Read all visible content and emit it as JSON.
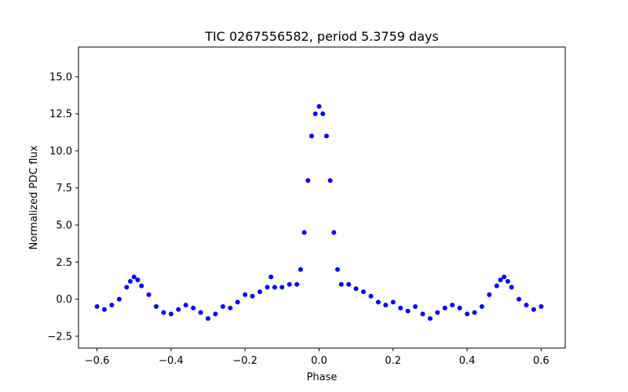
{
  "chart_data": {
    "type": "scatter",
    "title": "TIC 0267556582, period 5.3759 days",
    "xlabel": "Phase",
    "ylabel": "Normalized PDC flux",
    "xlim": [
      -0.65,
      0.665
    ],
    "ylim": [
      -3.3,
      17.0
    ],
    "xticks": [
      -0.6,
      -0.4,
      -0.2,
      0.0,
      0.2,
      0.4,
      0.6
    ],
    "xtick_labels": [
      "−0.6",
      "−0.4",
      "−0.2",
      "0.0",
      "0.2",
      "0.4",
      "0.6"
    ],
    "yticks": [
      -2.5,
      0.0,
      2.5,
      5.0,
      7.5,
      10.0,
      12.5,
      15.0
    ],
    "ytick_labels": [
      "−2.5",
      "0.0",
      "2.5",
      "5.0",
      "7.5",
      "10.0",
      "12.5",
      "15.0"
    ],
    "grid": false,
    "marker_color": "#0000ff",
    "series": [
      {
        "x": [
          -0.6,
          -0.58,
          -0.56,
          -0.54,
          -0.52,
          -0.51,
          -0.5,
          -0.49,
          -0.48,
          -0.46,
          -0.44,
          -0.42,
          -0.4,
          -0.38,
          -0.36,
          -0.34,
          -0.32,
          -0.3,
          -0.28,
          -0.26,
          -0.24,
          -0.22,
          -0.2,
          -0.18,
          -0.16,
          -0.14,
          -0.13,
          -0.12,
          -0.1,
          -0.08,
          -0.06,
          -0.05,
          -0.04,
          -0.03,
          -0.02,
          -0.01,
          0.0,
          0.01,
          0.02,
          0.03,
          0.04,
          0.05,
          0.06,
          0.08,
          0.1,
          0.12,
          0.14,
          0.16,
          0.18,
          0.2,
          0.22,
          0.24,
          0.26,
          0.28,
          0.3,
          0.32,
          0.34,
          0.36,
          0.38,
          0.4,
          0.42,
          0.44,
          0.46,
          0.48,
          0.49,
          0.5,
          0.51,
          0.52,
          0.54,
          0.56,
          0.58,
          0.6
        ],
        "y": [
          -0.5,
          -0.7,
          -0.4,
          0.0,
          0.8,
          1.2,
          1.5,
          1.3,
          0.9,
          0.3,
          -0.5,
          -0.9,
          -1.0,
          -0.7,
          -0.4,
          -0.6,
          -0.9,
          -1.3,
          -1.0,
          -0.5,
          -0.6,
          -0.2,
          0.3,
          0.2,
          0.5,
          0.8,
          1.5,
          0.8,
          0.8,
          1.0,
          1.0,
          2.0,
          4.5,
          8.0,
          11.0,
          12.5,
          13.0,
          12.5,
          11.0,
          8.0,
          4.5,
          2.0,
          1.0,
          1.0,
          0.7,
          0.5,
          0.2,
          -0.2,
          -0.4,
          -0.2,
          -0.6,
          -0.8,
          -0.5,
          -1.0,
          -1.3,
          -0.9,
          -0.6,
          -0.4,
          -0.6,
          -1.0,
          -0.9,
          -0.5,
          0.3,
          0.9,
          1.3,
          1.5,
          1.2,
          0.8,
          0.0,
          -0.4,
          -0.7,
          -0.5
        ]
      }
    ]
  }
}
